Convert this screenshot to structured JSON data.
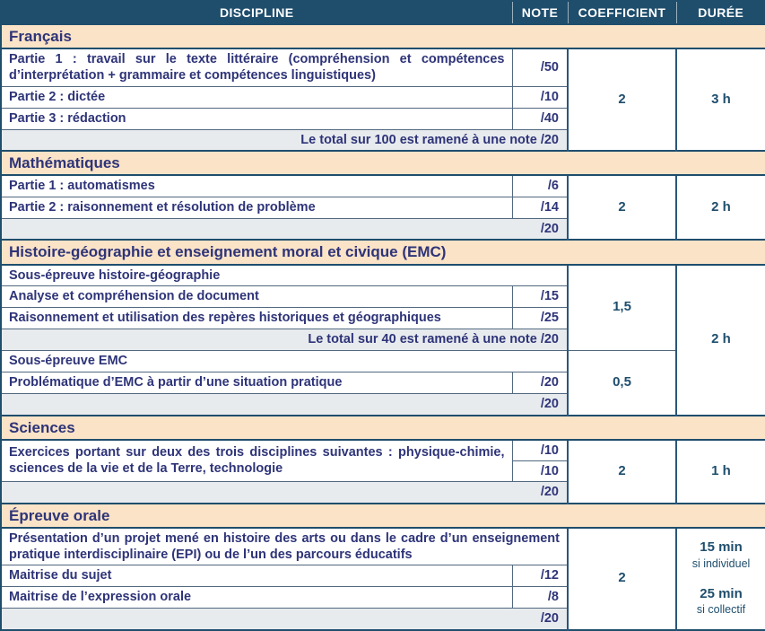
{
  "table_header": {
    "discipline": "DISCIPLINE",
    "note": "NOTE",
    "coefficient": "COEFFICIENT",
    "duree": "DURÉE"
  },
  "colors": {
    "header_bg": "#1F4E6D",
    "section_bg": "#FAE3C7",
    "total_row_bg": "#E8EBEE",
    "body_text": "#2E3478",
    "accent_text": "#1F4E6D",
    "grid_line": "#51687F"
  },
  "sections": [
    {
      "title": "Français",
      "rows": [
        {
          "label": "Partie 1 : travail sur le texte littéraire (compréhension et compétences d’interprétation + grammaire et compétences linguistiques)",
          "note": "/50"
        },
        {
          "label": "Partie 2 : dictée",
          "note": "/10"
        },
        {
          "label": "Partie 3 : rédaction",
          "note": "/40"
        }
      ],
      "total_label": "Le total sur 100 est ramené à une note /20",
      "coefficient": "2",
      "duree": "3 h"
    },
    {
      "title": "Mathématiques",
      "rows": [
        {
          "label": "Partie 1 : automatismes",
          "note": "/6"
        },
        {
          "label": "Partie 2 : raisonnement et résolution de problème",
          "note": "/14"
        }
      ],
      "total_label": "/20",
      "coefficient": "2",
      "duree": "2 h"
    },
    {
      "title": "Histoire-géographie et enseignement moral et civique (EMC)",
      "subsection_1_header": "Sous-épreuve histoire-géographie",
      "rows_1": [
        {
          "label": "Analyse et compréhension de document",
          "note": "/15"
        },
        {
          "label": "Raisonnement et utilisation des repères historiques et géographiques",
          "note": "/25"
        }
      ],
      "total_1_label": "Le total sur 40 est ramené à une note /20",
      "coefficient_1": "1,5",
      "subsection_2_header": "Sous-épreuve EMC",
      "rows_2": [
        {
          "label": "Problématique d’EMC à partir d’une situation pratique",
          "note": "/20"
        }
      ],
      "coefficient_2": "0,5",
      "total_label": "/20",
      "duree": "2 h"
    },
    {
      "title": "Sciences",
      "exercise_label": "Exercices portant sur deux des trois disciplines suivantes : physique-chimie, sciences de la vie et de la Terre, technologie",
      "notes": [
        "/10",
        "/10"
      ],
      "total_label": "/20",
      "coefficient": "2",
      "duree": "1 h"
    },
    {
      "title": "Épreuve orale",
      "intro_label": "Présentation d’un projet mené en histoire des arts ou dans le cadre d’un enseignement pratique interdisciplinaire (EPI) ou de l’un des parcours éducatifs",
      "rows": [
        {
          "label": "Maitrise du sujet",
          "note": "/12"
        },
        {
          "label": "Maitrise de l’expression orale",
          "note": "/8"
        }
      ],
      "total_label": "/20",
      "coefficient": "2",
      "duree": {
        "individual_value": "15 min",
        "individual_label": "si individuel",
        "collective_value": "25 min",
        "collective_label": "si collectif"
      }
    }
  ]
}
